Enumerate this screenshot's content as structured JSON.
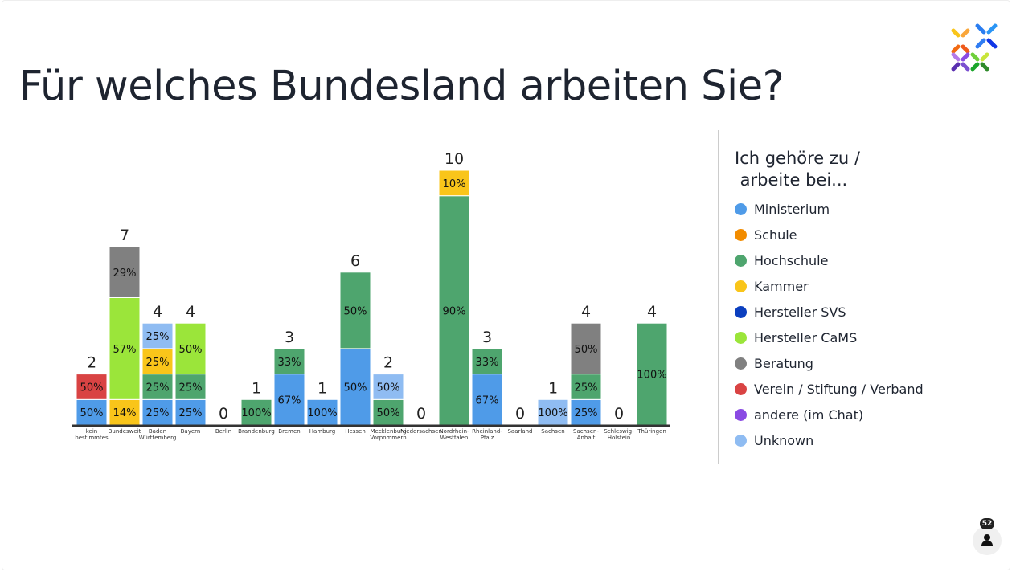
{
  "title": "Für welches Bundesland arbeiten Sie?",
  "participant_count": "52",
  "chart_data": {
    "type": "bar",
    "stacked": true,
    "title": "Für welches Bundesland arbeiten Sie?",
    "legend_title": "Ich gehöre zu /\n arbeite bei...",
    "legend_position": "right",
    "categories": [
      "kein bestimmtes",
      "Bundesweit",
      "Baden Württemberg",
      "Bayern",
      "Berlin",
      "Brandenburg",
      "Bremen",
      "Hamburg",
      "Hessen",
      "Mecklenburg Vorpommern",
      "Niedersachsen",
      "Nordrhein-Westfalen",
      "Rheinland-Pfalz",
      "Saarland",
      "Sachsen",
      "Sachsen-Anhalt",
      "Schleswig-Holstein",
      "Thüringen"
    ],
    "category_labels": [
      [
        "kein",
        "bestimmtes"
      ],
      [
        "Bundesweit"
      ],
      [
        "Baden",
        "Württemberg"
      ],
      [
        "Bayern"
      ],
      [
        "Berlin"
      ],
      [
        "Brandenburg"
      ],
      [
        "Bremen"
      ],
      [
        "Hamburg"
      ],
      [
        "Hessen"
      ],
      [
        "Mecklenburg",
        "Vorpommern"
      ],
      [
        "Niedersachsen"
      ],
      [
        "Nordrhein-",
        "Westfalen"
      ],
      [
        "Rheinland-",
        "Pfalz"
      ],
      [
        "Saarland"
      ],
      [
        "Sachsen"
      ],
      [
        "Sachsen-",
        "Anhalt"
      ],
      [
        "Schleswig-",
        "Holstein"
      ],
      [
        "Thüringen"
      ]
    ],
    "totals": [
      2,
      7,
      4,
      4,
      0,
      1,
      3,
      1,
      6,
      2,
      0,
      10,
      3,
      0,
      1,
      4,
      0,
      4
    ],
    "series": [
      {
        "name": "Ministerium",
        "color": "#4f9be8",
        "values": [
          1,
          0,
          1,
          1,
          0,
          0,
          2,
          1,
          3,
          0,
          0,
          0,
          2,
          0,
          0,
          1,
          0,
          0
        ]
      },
      {
        "name": "Schule",
        "color": "#f28c00",
        "values": [
          0,
          0,
          0,
          0,
          0,
          0,
          0,
          0,
          0,
          0,
          0,
          0,
          0,
          0,
          0,
          0,
          0,
          0
        ]
      },
      {
        "name": "Hochschule",
        "color": "#4ea56e",
        "values": [
          0,
          0,
          1,
          1,
          0,
          1,
          1,
          0,
          3,
          1,
          0,
          9,
          1,
          0,
          0,
          1,
          0,
          4
        ]
      },
      {
        "name": "Kammer",
        "color": "#f9c51a",
        "values": [
          0,
          1,
          1,
          0,
          0,
          0,
          0,
          0,
          0,
          0,
          0,
          1,
          0,
          0,
          0,
          0,
          0,
          0
        ]
      },
      {
        "name": "Hersteller SVS",
        "color": "#0b3fbf",
        "values": [
          0,
          0,
          0,
          0,
          0,
          0,
          0,
          0,
          0,
          0,
          0,
          0,
          0,
          0,
          0,
          0,
          0,
          0
        ]
      },
      {
        "name": "Hersteller CaMS",
        "color": "#9be53a",
        "values": [
          0,
          4,
          0,
          2,
          0,
          0,
          0,
          0,
          0,
          0,
          0,
          0,
          0,
          0,
          0,
          0,
          0,
          0
        ]
      },
      {
        "name": "Beratung",
        "color": "#808080",
        "values": [
          0,
          2,
          0,
          0,
          0,
          0,
          0,
          0,
          0,
          0,
          0,
          0,
          0,
          0,
          0,
          2,
          0,
          0
        ]
      },
      {
        "name": "Verein / Stiftung / Verband",
        "color": "#d94343",
        "values": [
          1,
          0,
          0,
          0,
          0,
          0,
          0,
          0,
          0,
          0,
          0,
          0,
          0,
          0,
          0,
          0,
          0,
          0
        ]
      },
      {
        "name": "andere (im Chat)",
        "color": "#8a4ae3",
        "values": [
          0,
          0,
          0,
          0,
          0,
          0,
          0,
          0,
          0,
          0,
          0,
          0,
          0,
          0,
          0,
          0,
          0,
          0
        ]
      },
      {
        "name": "Unknown",
        "color": "#8fbcf2",
        "values": [
          0,
          0,
          1,
          0,
          0,
          0,
          0,
          0,
          0,
          1,
          0,
          0,
          0,
          0,
          1,
          0,
          0,
          0
        ]
      }
    ],
    "ylim": [
      0,
      10
    ]
  }
}
